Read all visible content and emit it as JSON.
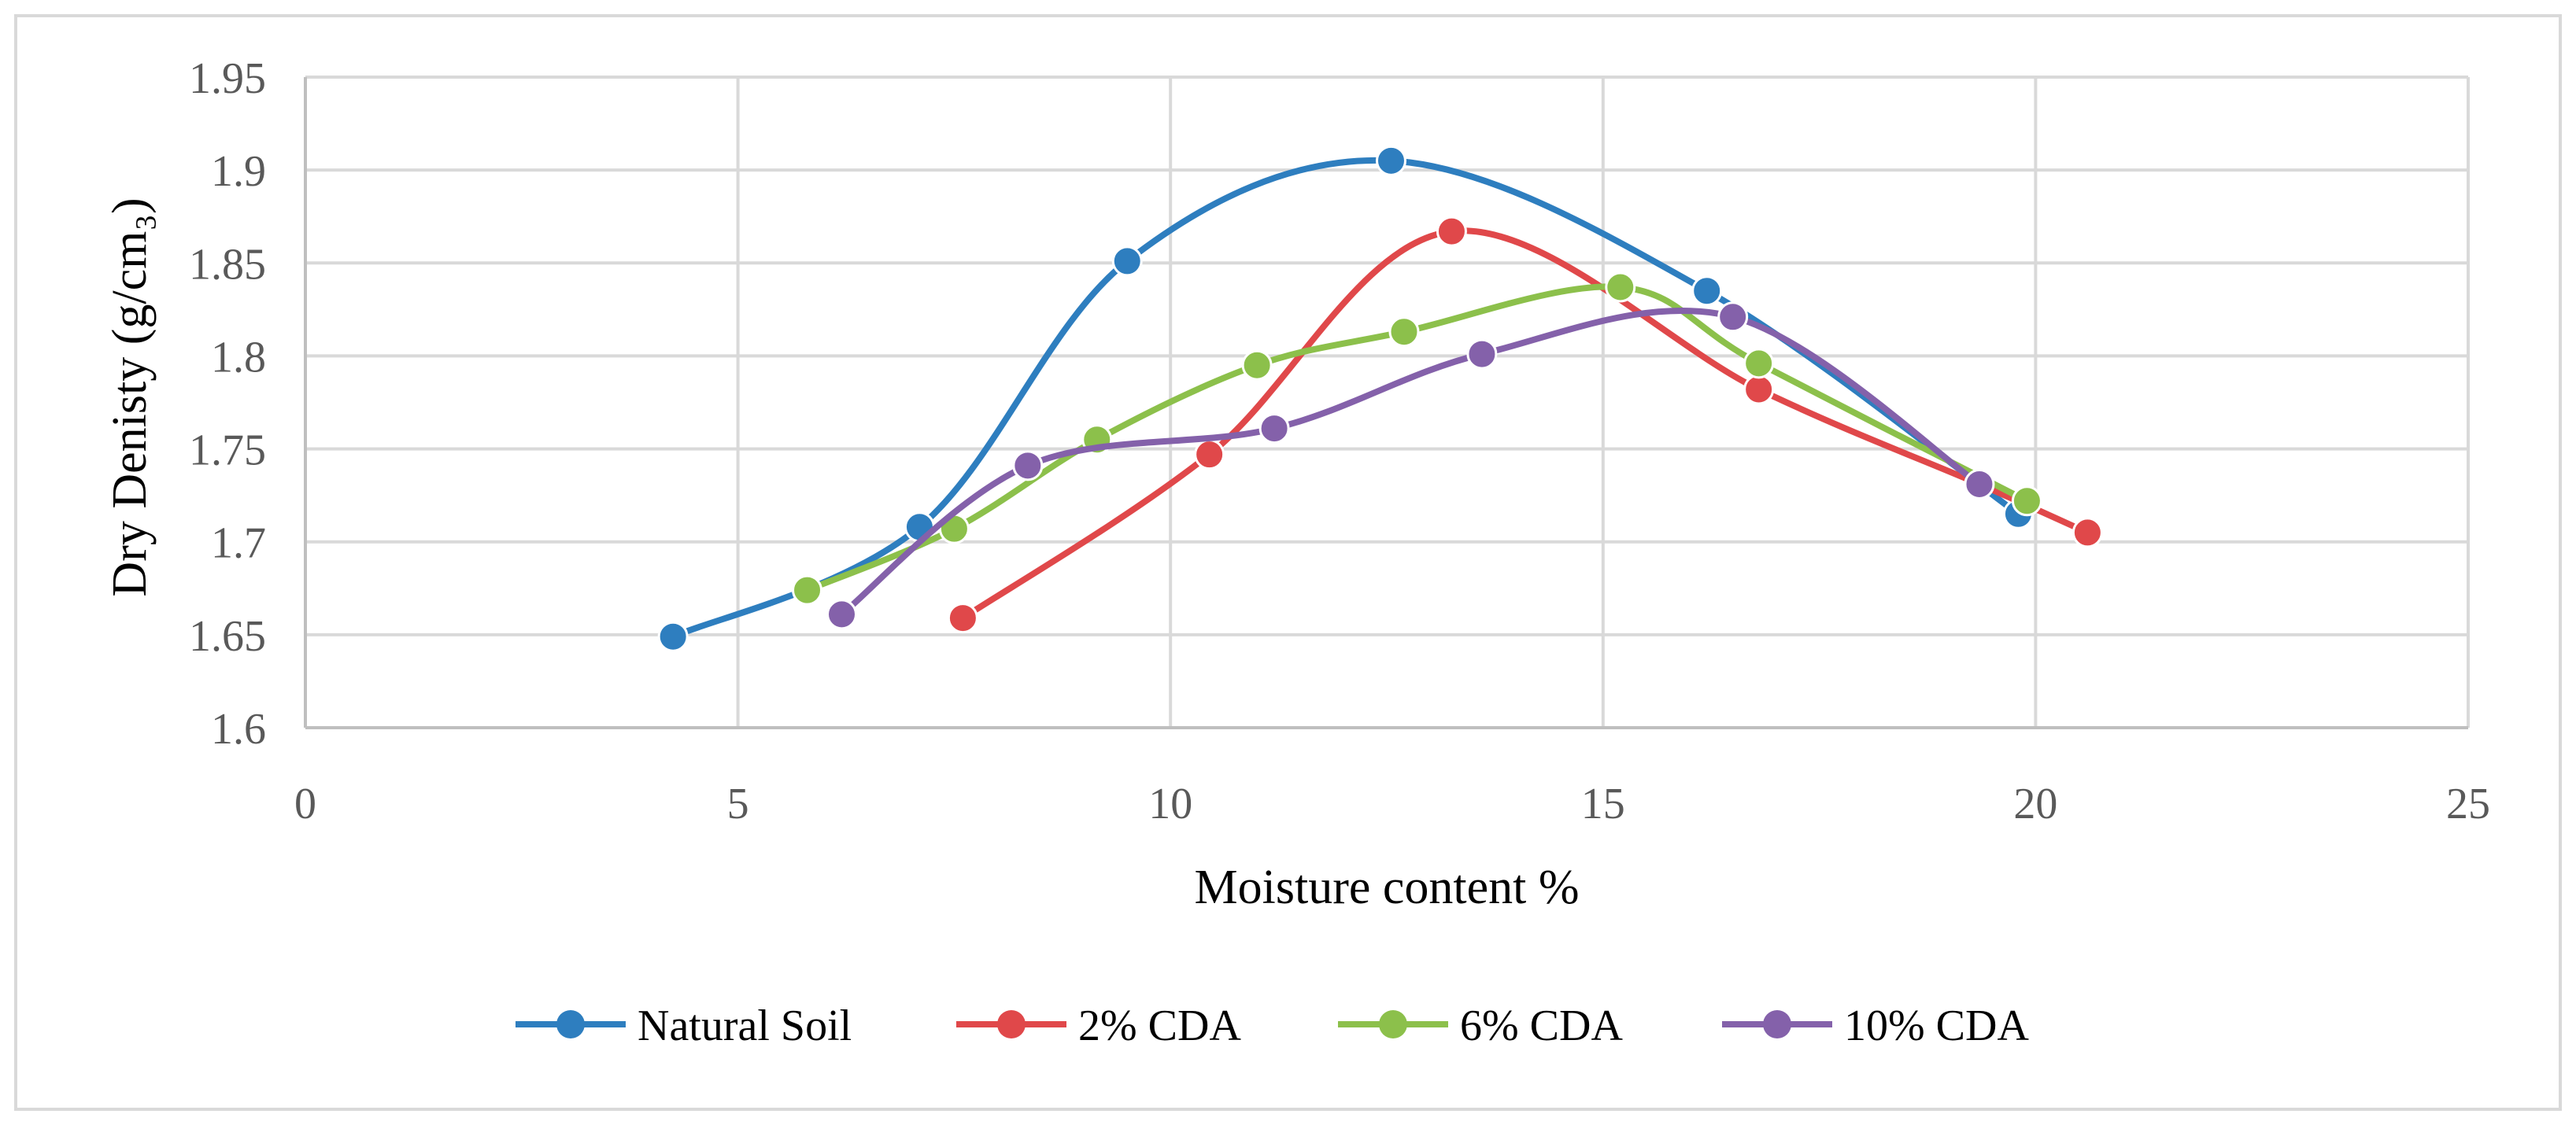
{
  "chart_data": {
    "type": "line",
    "title": "",
    "xlabel": "Moisture content %",
    "ylabel": "Dry Denisty (g/cm₃)",
    "xlim": [
      0,
      25
    ],
    "ylim": [
      1.6,
      1.95
    ],
    "x_ticks": [
      "0",
      "5",
      "10",
      "15",
      "20",
      "25"
    ],
    "y_ticks": [
      "1.6",
      "1.65",
      "1.7",
      "1.75",
      "1.8",
      "1.85",
      "1.9",
      "1.95"
    ],
    "grid": true,
    "legend_position": "bottom",
    "series": [
      {
        "name": "Natural Soil",
        "color": "#2e7ebf",
        "x": [
          4.25,
          7.1,
          9.5,
          12.55,
          16.2,
          19.8
        ],
        "y": [
          1.649,
          1.708,
          1.851,
          1.905,
          1.835,
          1.715
        ]
      },
      {
        "name": "2% CDA",
        "color": "#e0484a",
        "x": [
          7.6,
          10.45,
          13.25,
          16.8,
          19.35,
          20.6
        ],
        "y": [
          1.659,
          1.747,
          1.867,
          1.782,
          1.731,
          1.705
        ]
      },
      {
        "name": "6% CDA",
        "color": "#8cc04b",
        "x": [
          5.8,
          7.5,
          9.15,
          11.0,
          12.7,
          15.2,
          16.8,
          19.9
        ],
        "y": [
          1.674,
          1.707,
          1.755,
          1.795,
          1.813,
          1.837,
          1.796,
          1.722
        ]
      },
      {
        "name": "10% CDA",
        "color": "#8461aa",
        "x": [
          6.2,
          8.35,
          11.2,
          13.6,
          16.5,
          19.35
        ],
        "y": [
          1.661,
          1.741,
          1.761,
          1.801,
          1.821,
          1.731
        ]
      }
    ]
  }
}
